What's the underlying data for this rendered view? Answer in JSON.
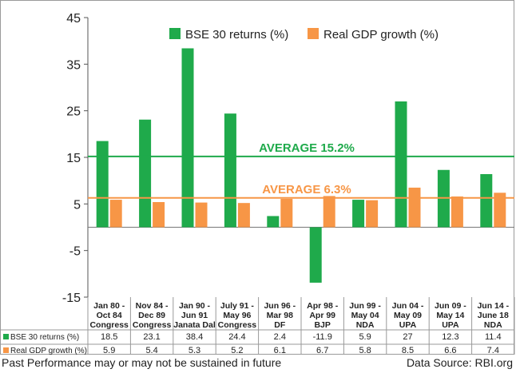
{
  "chart_data": {
    "type": "bar",
    "categories": [
      [
        "Jan 80 -",
        "Oct 84",
        "Congress"
      ],
      [
        "Nov 84 -",
        "Dec 89",
        "Congress"
      ],
      [
        "Jan 90 -",
        "Jun 91",
        "Janata Dal"
      ],
      [
        "July 91 -",
        "May 96",
        "Congress"
      ],
      [
        "Jun 96 -",
        "Mar 98",
        "DF"
      ],
      [
        "Apr 98 -",
        "Apr 99",
        "BJP"
      ],
      [
        "Jun 99 -",
        "May 04",
        "NDA"
      ],
      [
        "Jun 04 -",
        "May 09",
        "UPA"
      ],
      [
        "Jun 09 -",
        "May 14",
        "UPA"
      ],
      [
        "Jun 14 -",
        "June 18",
        "NDA"
      ]
    ],
    "series": [
      {
        "name": "BSE 30 returns (%)",
        "color": "#1faa4b",
        "values": [
          18.5,
          23.1,
          38.4,
          24.4,
          2.4,
          -11.9,
          5.9,
          27,
          12.3,
          11.4
        ],
        "labels": [
          "18.5",
          "23.1",
          "38.4",
          "24.4",
          "2.4",
          "-11.9",
          "5.9",
          "27",
          "12.3",
          "11.4"
        ]
      },
      {
        "name": "Real GDP growth (%)",
        "color": "#f79646",
        "values": [
          5.9,
          5.4,
          5.3,
          5.2,
          6.1,
          6.7,
          5.8,
          8.5,
          6.6,
          7.4
        ],
        "labels": [
          "5.9",
          "5.4",
          "5.3",
          "5.2",
          "6.1",
          "6.7",
          "5.8",
          "8.5",
          "6.6",
          "7.4"
        ]
      }
    ],
    "table_row_labels": [
      "BSE 30 returns (%)",
      "Real GDP growth (%)"
    ],
    "ylim": [
      -15,
      45
    ],
    "yticks": [
      45,
      35,
      25,
      15,
      5,
      -5,
      -15
    ],
    "averages": [
      {
        "label": "AVERAGE 15.2%",
        "value": 15.2,
        "color": "#1faa4b"
      },
      {
        "label": "AVERAGE 6.3%",
        "value": 6.3,
        "color": "#f79646"
      }
    ],
    "legend_position": "top-center",
    "grid": false
  },
  "footer": {
    "disclaimer": "Past Performance may or may not be sustained in future",
    "source": "Data Source: RBI.org"
  }
}
